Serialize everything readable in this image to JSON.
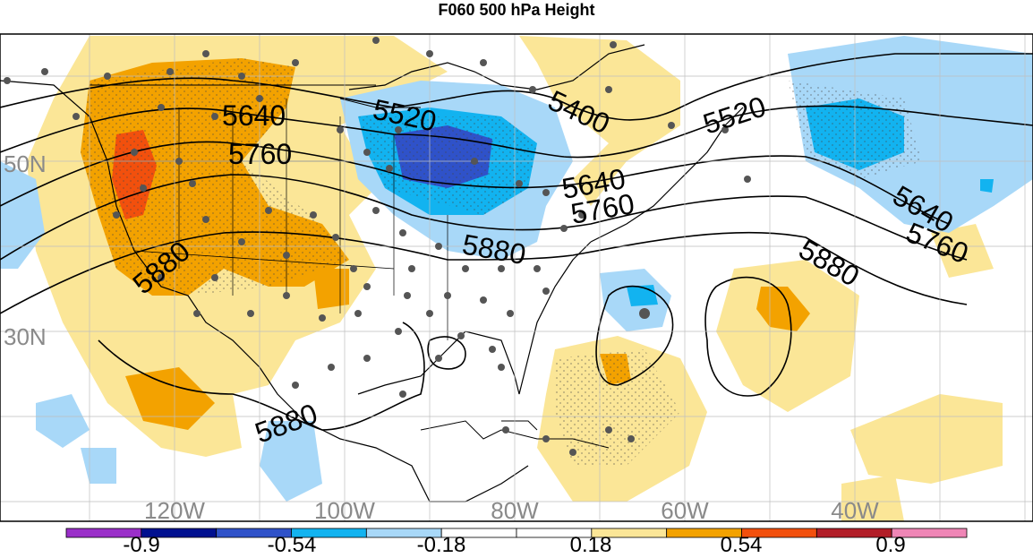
{
  "title": "F060 500 hPa Height",
  "map": {
    "projection": "cylindrical",
    "longitude_labels": [
      "120W",
      "100W",
      "80W",
      "60W",
      "40W"
    ],
    "latitude_labels": [
      "50N",
      "30N"
    ],
    "contour_labels": [
      "5640",
      "5520",
      "5400",
      "5520",
      "5760",
      "5640",
      "5760",
      "5880",
      "5640",
      "5760",
      "5880",
      "5880",
      "5880"
    ],
    "grid_label_color": "#8a8a8a",
    "land_outline_color": "#000000",
    "stations": "dark grey dots"
  },
  "colorbar": {
    "colors": [
      "#9a2fc9",
      "#00108f",
      "#2f52c9",
      "#12b3f0",
      "#a8d8f8",
      "#ffffff",
      "#ffffff",
      "#fbe697",
      "#f3a200",
      "#f2500d",
      "#b21e28",
      "#ef86b6"
    ],
    "tick_labels": [
      "-0.9",
      "-0.54",
      "-0.18",
      "0.18",
      "0.54",
      "0.9"
    ]
  }
}
